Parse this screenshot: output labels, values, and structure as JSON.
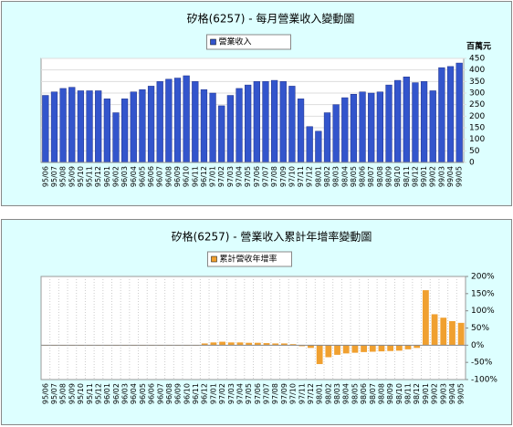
{
  "chart_data": [
    {
      "type": "bar",
      "title": "矽格(6257) - 每月營業收入變動圖",
      "y_axis_label": "百萬元",
      "categories": [
        "95/06",
        "95/07",
        "95/08",
        "95/09",
        "95/10",
        "95/11",
        "95/12",
        "96/01",
        "96/02",
        "96/03",
        "96/04",
        "96/05",
        "96/06",
        "96/07",
        "96/08",
        "96/09",
        "96/10",
        "96/11",
        "96/12",
        "97/01",
        "97/02",
        "97/03",
        "97/04",
        "97/05",
        "97/06",
        "97/07",
        "97/08",
        "97/09",
        "97/10",
        "97/11",
        "97/12",
        "98/01",
        "98/02",
        "98/03",
        "98/04",
        "98/05",
        "98/06",
        "98/07",
        "98/08",
        "98/09",
        "98/10",
        "98/11",
        "98/12",
        "99/01",
        "99/02",
        "99/03",
        "99/04",
        "99/05"
      ],
      "series": [
        {
          "name": "營業收入",
          "color": "#3355cc",
          "values": [
            290,
            305,
            320,
            325,
            310,
            310,
            310,
            275,
            215,
            275,
            305,
            315,
            330,
            350,
            360,
            365,
            375,
            350,
            315,
            300,
            245,
            290,
            320,
            335,
            350,
            350,
            355,
            350,
            330,
            275,
            155,
            135,
            215,
            250,
            280,
            295,
            305,
            300,
            305,
            335,
            355,
            370,
            345,
            350,
            310,
            410,
            415,
            430
          ]
        }
      ],
      "ylim": [
        0,
        450
      ],
      "yticks": [
        0,
        50,
        100,
        150,
        200,
        250,
        300,
        350,
        400,
        450
      ],
      "grid": true
    },
    {
      "type": "bar",
      "title": "矽格(6257) -  營業收入累計年增率變動圖",
      "categories": [
        "95/06",
        "95/07",
        "95/08",
        "95/09",
        "95/10",
        "95/11",
        "95/12",
        "96/01",
        "96/02",
        "96/03",
        "96/04",
        "96/05",
        "96/06",
        "96/07",
        "96/08",
        "96/09",
        "96/10",
        "96/11",
        "96/12",
        "97/01",
        "97/02",
        "97/03",
        "97/04",
        "97/05",
        "97/06",
        "97/07",
        "97/08",
        "97/09",
        "97/10",
        "97/11",
        "97/12",
        "98/01",
        "98/02",
        "98/03",
        "98/04",
        "98/05",
        "98/06",
        "98/07",
        "98/08",
        "98/09",
        "98/10",
        "98/11",
        "98/12",
        "99/01",
        "99/02",
        "99/03",
        "99/04",
        "99/05"
      ],
      "series": [
        {
          "name": "累計營收年增率",
          "color": "#f0a030",
          "values": [
            0,
            0,
            0,
            0,
            0,
            0,
            0,
            0,
            0,
            0,
            0,
            0,
            0,
            0,
            0,
            0,
            0,
            0,
            5,
            8,
            10,
            8,
            8,
            7,
            7,
            6,
            5,
            5,
            3,
            -3,
            -8,
            -55,
            -35,
            -28,
            -24,
            -22,
            -20,
            -19,
            -18,
            -17,
            -16,
            -12,
            -8,
            160,
            90,
            80,
            70,
            65
          ]
        }
      ],
      "ylim": [
        -100,
        200
      ],
      "yticks": [
        {
          "value": -100,
          "label": "-100%"
        },
        {
          "value": -50,
          "label": "-50%"
        },
        {
          "value": 0,
          "label": "0%"
        },
        {
          "value": 50,
          "label": "50%"
        },
        {
          "value": 100,
          "label": "100%"
        },
        {
          "value": 150,
          "label": "150%"
        },
        {
          "value": 200,
          "label": "200%"
        }
      ],
      "grid": false
    }
  ]
}
